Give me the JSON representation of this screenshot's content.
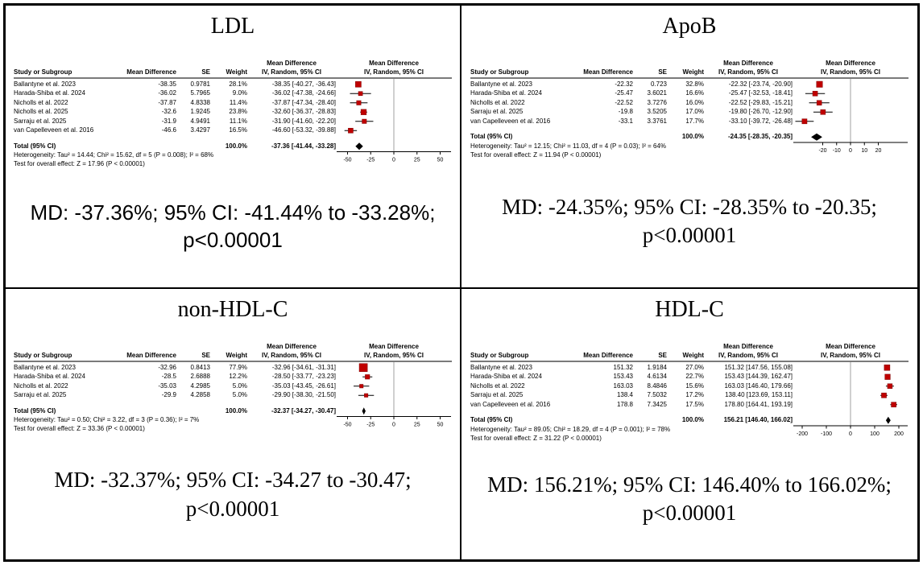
{
  "column_headers": {
    "top": "Mean Difference",
    "study": "Study or Subgroup",
    "md": "Mean Difference",
    "se": "SE",
    "weight": "Weight",
    "ci": "IV, Random, 95% CI"
  },
  "colors": {
    "marker": "#c00000",
    "marker_border": "#7f0000",
    "diamond": "#000000",
    "ci_line": "#000000",
    "axis": "#000000",
    "zero_line": "#a0a0a0",
    "header_rule": "#7a7a7a",
    "border": "#000000"
  },
  "chart_data": [
    {
      "type": "scatter",
      "subtype": "forest-plot",
      "title": "LDL",
      "summary": {
        "line1": "MD: -37.36%; 95% CI: -41.44% to -33.28%;",
        "line2": "p<0.00001"
      },
      "axis": {
        "min": -60,
        "max": 60,
        "ticks": [
          -50,
          -25,
          0,
          25,
          50
        ]
      },
      "studies": [
        {
          "name": "Ballantyne et al. 2023",
          "md": "-38.35",
          "se": "0.9781",
          "weight": "28.1%",
          "ci": "-38.35 [-40.27, -36.43]",
          "est": -38.35,
          "lo": -40.27,
          "hi": -36.43,
          "w": 28.1
        },
        {
          "name": "Harada-Shiba et al. 2024",
          "md": "-36.02",
          "se": "5.7965",
          "weight": "9.0%",
          "ci": "-36.02 [-47.38, -24.66]",
          "est": -36.02,
          "lo": -47.38,
          "hi": -24.66,
          "w": 9.0
        },
        {
          "name": "Nicholls et al. 2022",
          "md": "-37.87",
          "se": "4.8338",
          "weight": "11.4%",
          "ci": "-37.87 [-47.34, -28.40]",
          "est": -37.87,
          "lo": -47.34,
          "hi": -28.4,
          "w": 11.4
        },
        {
          "name": "Nicholls et al. 2025",
          "md": "-32.6",
          "se": "1.9245",
          "weight": "23.8%",
          "ci": "-32.60 [-36.37, -28.83]",
          "est": -32.6,
          "lo": -36.37,
          "hi": -28.83,
          "w": 23.8
        },
        {
          "name": "Sarraju et al. 2025",
          "md": "-31.9",
          "se": "4.9491",
          "weight": "11.1%",
          "ci": "-31.90 [-41.60, -22.20]",
          "est": -31.9,
          "lo": -41.6,
          "hi": -22.2,
          "w": 11.1
        },
        {
          "name": "van Capelleveen et al. 2016",
          "md": "-46.6",
          "se": "3.4297",
          "weight": "16.5%",
          "ci": "-46.60 [-53.32, -39.88]",
          "est": -46.6,
          "lo": -53.32,
          "hi": -39.88,
          "w": 16.5
        }
      ],
      "total": {
        "label": "Total (95% CI)",
        "weight": "100.0%",
        "ci": "-37.36 [-41.44, -33.28]",
        "est": -37.36,
        "lo": -41.44,
        "hi": -33.28
      },
      "heterogeneity": "Heterogeneity: Tau² = 14.44; Chi² = 15.62, df = 5 (P = 0.008); I² = 68%",
      "overall_effect": "Test for overall effect: Z = 17.96 (P < 0.00001)"
    },
    {
      "type": "scatter",
      "subtype": "forest-plot",
      "title": "ApoB",
      "summary": {
        "line1": "MD: -24.35%; 95% CI: -28.35% to -20.35;",
        "line2": "p<0.00001"
      },
      "axis": {
        "min": -40,
        "max": 40,
        "ticks": [
          -20,
          -10,
          0,
          10,
          20
        ]
      },
      "studies": [
        {
          "name": "Ballantyne et al. 2023",
          "md": "-22.32",
          "se": "0.723",
          "weight": "32.8%",
          "ci": "-22.32 [-23.74, -20.90]",
          "est": -22.32,
          "lo": -23.74,
          "hi": -20.9,
          "w": 32.8
        },
        {
          "name": "Harada-Shiba et al. 2024",
          "md": "-25.47",
          "se": "3.6021",
          "weight": "16.6%",
          "ci": "-25.47 [-32.53, -18.41]",
          "est": -25.47,
          "lo": -32.53,
          "hi": -18.41,
          "w": 16.6
        },
        {
          "name": "Nicholls et al. 2022",
          "md": "-22.52",
          "se": "3.7276",
          "weight": "16.0%",
          "ci": "-22.52 [-29.83, -15.21]",
          "est": -22.52,
          "lo": -29.83,
          "hi": -15.21,
          "w": 16.0
        },
        {
          "name": "Sarraju et al. 2025",
          "md": "-19.8",
          "se": "3.5205",
          "weight": "17.0%",
          "ci": "-19.80 [-26.70, -12.90]",
          "est": -19.8,
          "lo": -26.7,
          "hi": -12.9,
          "w": 17.0
        },
        {
          "name": "van Capelleveen et al. 2016",
          "md": "-33.1",
          "se": "3.3761",
          "weight": "17.7%",
          "ci": "-33.10 [-39.72, -26.48]",
          "est": -33.1,
          "lo": -39.72,
          "hi": -26.48,
          "w": 17.7
        }
      ],
      "total": {
        "label": "Total (95% CI)",
        "weight": "100.0%",
        "ci": "-24.35 [-28.35, -20.35]",
        "est": -24.35,
        "lo": -28.35,
        "hi": -20.35
      },
      "heterogeneity": "Heterogeneity: Tau² = 12.15; Chi² = 11.03, df = 4 (P = 0.03); I² = 64%",
      "overall_effect": "Test for overall effect: Z = 11.94 (P < 0.00001)"
    },
    {
      "type": "scatter",
      "subtype": "forest-plot",
      "title": "non-HDL-C",
      "summary": {
        "line1": "MD: -32.37%; 95% CI: -34.27 to -30.47;",
        "line2": "p<0.00001"
      },
      "axis": {
        "min": -60,
        "max": 60,
        "ticks": [
          -50,
          -25,
          0,
          25,
          50
        ]
      },
      "studies": [
        {
          "name": "Ballantyne et al. 2023",
          "md": "-32.96",
          "se": "0.8413",
          "weight": "77.9%",
          "ci": "-32.96 [-34.61, -31.31]",
          "est": -32.96,
          "lo": -34.61,
          "hi": -31.31,
          "w": 77.9
        },
        {
          "name": "Harada-Shiba et al. 2024",
          "md": "-28.5",
          "se": "2.6888",
          "weight": "12.2%",
          "ci": "-28.50 [-33.77, -23.23]",
          "est": -28.5,
          "lo": -33.77,
          "hi": -23.23,
          "w": 12.2
        },
        {
          "name": "Nicholls et al. 2022",
          "md": "-35.03",
          "se": "4.2985",
          "weight": "5.0%",
          "ci": "-35.03 [-43.45, -26.61]",
          "est": -35.03,
          "lo": -43.45,
          "hi": -26.61,
          "w": 5.0
        },
        {
          "name": "Sarraju et al. 2025",
          "md": "-29.9",
          "se": "4.2858",
          "weight": "5.0%",
          "ci": "-29.90 [-38.30, -21.50]",
          "est": -29.9,
          "lo": -38.3,
          "hi": -21.5,
          "w": 5.0
        }
      ],
      "total": {
        "label": "Total (95% CI)",
        "weight": "100.0%",
        "ci": "-32.37 [-34.27, -30.47]",
        "est": -32.37,
        "lo": -34.27,
        "hi": -30.47
      },
      "heterogeneity": "Heterogeneity: Tau² = 0.50; Chi² = 3.22, df = 3 (P = 0.36); I² = 7%",
      "overall_effect": "Test for overall effect: Z = 33.36 (P < 0.00001)"
    },
    {
      "type": "scatter",
      "subtype": "forest-plot",
      "title": "HDL-C",
      "summary": {
        "line1": "MD: 156.21%; 95% CI: 146.40% to 166.02%;",
        "line2": "p<0.00001"
      },
      "axis": {
        "min": -230,
        "max": 230,
        "ticks": [
          -200,
          -100,
          0,
          100,
          200
        ]
      },
      "studies": [
        {
          "name": "Ballantyne et al. 2023",
          "md": "151.32",
          "se": "1.9184",
          "weight": "27.0%",
          "ci": "151.32 [147.56, 155.08]",
          "est": 151.32,
          "lo": 147.56,
          "hi": 155.08,
          "w": 27.0
        },
        {
          "name": "Harada-Shiba et al. 2024",
          "md": "153.43",
          "se": "4.6134",
          "weight": "22.7%",
          "ci": "153.43 [144.39, 162.47]",
          "est": 153.43,
          "lo": 144.39,
          "hi": 162.47,
          "w": 22.7
        },
        {
          "name": "Nicholls et al. 2022",
          "md": "163.03",
          "se": "8.4846",
          "weight": "15.6%",
          "ci": "163.03 [146.40, 179.66]",
          "est": 163.03,
          "lo": 146.4,
          "hi": 179.66,
          "w": 15.6
        },
        {
          "name": "Sarraju et al. 2025",
          "md": "138.4",
          "se": "7.5032",
          "weight": "17.2%",
          "ci": "138.40 [123.69, 153.11]",
          "est": 138.4,
          "lo": 123.69,
          "hi": 153.11,
          "w": 17.2
        },
        {
          "name": "van Capelleveen et al. 2016",
          "md": "178.8",
          "se": "7.3425",
          "weight": "17.5%",
          "ci": "178.80 [164.41, 193.19]",
          "est": 178.8,
          "lo": 164.41,
          "hi": 193.19,
          "w": 17.5
        }
      ],
      "total": {
        "label": "Total (95% CI)",
        "weight": "100.0%",
        "ci": "156.21 [146.40, 166.02]",
        "est": 156.21,
        "lo": 146.4,
        "hi": 166.02
      },
      "heterogeneity": "Heterogeneity: Tau² = 89.05; Chi² = 18.29, df = 4 (P = 0.001); I² = 78%",
      "overall_effect": "Test for overall effect: Z = 31.22 (P < 0.00001)"
    }
  ]
}
